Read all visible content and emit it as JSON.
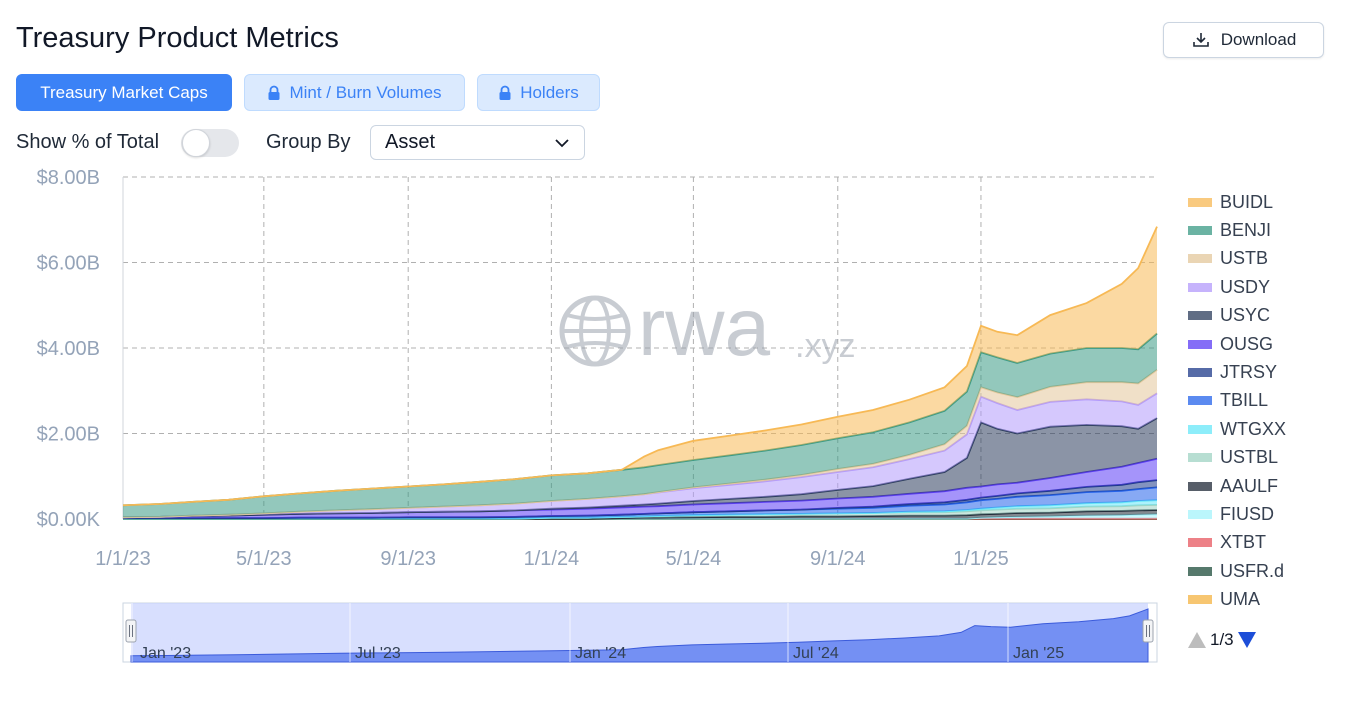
{
  "header": {
    "title": "Treasury Product Metrics",
    "download_label": "Download"
  },
  "tabs": [
    {
      "label": "Treasury Market Caps",
      "active": true,
      "locked": false
    },
    {
      "label": "Mint / Burn Volumes",
      "active": false,
      "locked": true
    },
    {
      "label": "Holders",
      "active": false,
      "locked": true
    }
  ],
  "controls": {
    "show_percent_label": "Show % of Total",
    "show_percent_on": false,
    "group_by_label": "Group By",
    "group_by_value": "Asset"
  },
  "watermark": {
    "main": "rwa",
    "suffix": ".xyz"
  },
  "legend_pager": "1/3",
  "navigator": {
    "labels": [
      "Jan '23",
      "Jul '23",
      "Jan '24",
      "Jul '24",
      "Jan '25"
    ]
  },
  "chart_data": {
    "type": "area",
    "stacked": true,
    "x_tick_labels": [
      "1/1/23",
      "5/1/23",
      "9/1/23",
      "1/1/24",
      "5/1/24",
      "9/1/24",
      "1/1/25"
    ],
    "y_tick_labels": [
      "$0.00K",
      "$2.00B",
      "$4.00B",
      "$6.00B",
      "$8.00B"
    ],
    "ylim": [
      0,
      8
    ],
    "y_unit": "B USD",
    "grid": true,
    "legend_position": "right",
    "x": [
      "2023-01-01",
      "2023-02-01",
      "2023-03-01",
      "2023-04-01",
      "2023-05-01",
      "2023-06-01",
      "2023-07-01",
      "2023-08-01",
      "2023-09-01",
      "2023-10-01",
      "2023-11-01",
      "2023-12-01",
      "2024-01-01",
      "2024-02-01",
      "2024-03-01",
      "2024-03-20",
      "2024-04-01",
      "2024-05-01",
      "2024-06-01",
      "2024-07-01",
      "2024-08-01",
      "2024-09-01",
      "2024-10-01",
      "2024-11-01",
      "2024-12-01",
      "2024-12-20",
      "2025-01-01",
      "2025-01-15",
      "2025-02-01",
      "2025-03-01",
      "2025-04-01",
      "2025-05-01",
      "2025-05-15",
      "2025-05-31"
    ],
    "series": [
      {
        "name": "UMA",
        "color": "#f5b342",
        "values": [
          0,
          0,
          0,
          0,
          0,
          0,
          0,
          0,
          0,
          0,
          0,
          0,
          0,
          0,
          0,
          0,
          0,
          0,
          0,
          0,
          0,
          0,
          0,
          0,
          0,
          0,
          0,
          0,
          0,
          0,
          0,
          0,
          0,
          0
        ]
      },
      {
        "name": "USFR.d",
        "color": "#1e4d3c",
        "values": [
          0,
          0,
          0,
          0,
          0,
          0,
          0,
          0,
          0,
          0,
          0,
          0,
          0,
          0,
          0,
          0,
          0,
          0,
          0,
          0,
          0,
          0,
          0,
          0,
          0,
          0,
          0,
          0,
          0,
          0,
          0,
          0,
          0,
          0
        ]
      },
      {
        "name": "XTBT",
        "color": "#e8575f",
        "values": [
          0.01,
          0.01,
          0.01,
          0.01,
          0.01,
          0.01,
          0.01,
          0.01,
          0.01,
          0.01,
          0.01,
          0.01,
          0.01,
          0.01,
          0.01,
          0.01,
          0.01,
          0.01,
          0.01,
          0.01,
          0.01,
          0.01,
          0.01,
          0.01,
          0.01,
          0.01,
          0.01,
          0.01,
          0.01,
          0.01,
          0.01,
          0.01,
          0.01,
          0.01
        ]
      },
      {
        "name": "FIUSD",
        "color": "#a5f3fc",
        "values": [
          0,
          0,
          0,
          0,
          0,
          0,
          0,
          0,
          0,
          0,
          0,
          0,
          0,
          0,
          0,
          0,
          0,
          0,
          0,
          0,
          0,
          0,
          0,
          0,
          0,
          0,
          0.02,
          0.03,
          0.04,
          0.05,
          0.07,
          0.08,
          0.09,
          0.1
        ]
      },
      {
        "name": "AAULF",
        "color": "#1f2937",
        "values": [
          0,
          0,
          0,
          0,
          0,
          0,
          0,
          0,
          0,
          0,
          0,
          0,
          0,
          0,
          0.01,
          0.02,
          0.02,
          0.03,
          0.04,
          0.04,
          0.05,
          0.05,
          0.06,
          0.07,
          0.07,
          0.08,
          0.08,
          0.08,
          0.09,
          0.09,
          0.1,
          0.1,
          0.1,
          0.1
        ]
      },
      {
        "name": "USTBL",
        "color": "#9fd4c4",
        "values": [
          0,
          0,
          0,
          0,
          0,
          0,
          0,
          0,
          0,
          0,
          0,
          0,
          0.02,
          0.02,
          0.03,
          0.03,
          0.04,
          0.05,
          0.05,
          0.06,
          0.06,
          0.07,
          0.07,
          0.08,
          0.08,
          0.09,
          0.09,
          0.1,
          0.1,
          0.1,
          0.11,
          0.11,
          0.12,
          0.12
        ]
      },
      {
        "name": "WTGXX",
        "color": "#67e8f9",
        "values": [
          0,
          0,
          0,
          0,
          0,
          0,
          0,
          0,
          0,
          0,
          0,
          0,
          0,
          0,
          0,
          0,
          0,
          0,
          0,
          0,
          0,
          0,
          0,
          0.01,
          0.02,
          0.03,
          0.04,
          0.05,
          0.06,
          0.07,
          0.08,
          0.09,
          0.1,
          0.11
        ]
      },
      {
        "name": "TBILL",
        "color": "#2563eb",
        "values": [
          0.01,
          0.01,
          0.01,
          0.01,
          0.01,
          0.02,
          0.02,
          0.02,
          0.03,
          0.03,
          0.03,
          0.04,
          0.04,
          0.05,
          0.05,
          0.06,
          0.06,
          0.07,
          0.08,
          0.09,
          0.1,
          0.11,
          0.12,
          0.14,
          0.16,
          0.18,
          0.2,
          0.2,
          0.22,
          0.24,
          0.26,
          0.27,
          0.28,
          0.3
        ]
      },
      {
        "name": "JTRSY",
        "color": "#1e3a8a",
        "values": [
          0,
          0,
          0,
          0,
          0,
          0,
          0,
          0,
          0,
          0,
          0,
          0,
          0,
          0,
          0,
          0,
          0,
          0,
          0,
          0,
          0,
          0.02,
          0.03,
          0.04,
          0.05,
          0.06,
          0.06,
          0.07,
          0.08,
          0.1,
          0.12,
          0.14,
          0.16,
          0.17
        ]
      },
      {
        "name": "OUSG",
        "color": "#5b3df5",
        "values": [
          0.02,
          0.03,
          0.05,
          0.06,
          0.08,
          0.09,
          0.1,
          0.11,
          0.12,
          0.13,
          0.14,
          0.15,
          0.15,
          0.16,
          0.17,
          0.17,
          0.17,
          0.18,
          0.19,
          0.2,
          0.21,
          0.22,
          0.23,
          0.24,
          0.26,
          0.28,
          0.26,
          0.27,
          0.25,
          0.3,
          0.35,
          0.42,
          0.45,
          0.5
        ]
      },
      {
        "name": "USYC",
        "color": "#2b3d5c",
        "values": [
          0,
          0,
          0,
          0,
          0,
          0,
          0,
          0,
          0,
          0,
          0,
          0,
          0.02,
          0.03,
          0.04,
          0.05,
          0.06,
          0.08,
          0.1,
          0.12,
          0.15,
          0.2,
          0.25,
          0.35,
          0.45,
          0.7,
          1.5,
          1.3,
          1.15,
          1.2,
          1.1,
          0.95,
          0.8,
          0.95
        ]
      },
      {
        "name": "USDY",
        "color": "#b39afc",
        "values": [
          0,
          0,
          0.01,
          0.02,
          0.03,
          0.05,
          0.07,
          0.09,
          0.1,
          0.12,
          0.14,
          0.16,
          0.18,
          0.2,
          0.22,
          0.24,
          0.26,
          0.3,
          0.33,
          0.36,
          0.4,
          0.42,
          0.44,
          0.46,
          0.5,
          0.55,
          0.6,
          0.6,
          0.55,
          0.58,
          0.6,
          0.58,
          0.56,
          0.58
        ]
      },
      {
        "name": "USTB",
        "color": "#e3c79b",
        "values": [
          0,
          0,
          0,
          0,
          0,
          0,
          0,
          0,
          0,
          0,
          0,
          0,
          0,
          0,
          0,
          0,
          0.01,
          0.02,
          0.03,
          0.04,
          0.05,
          0.07,
          0.08,
          0.1,
          0.15,
          0.2,
          0.22,
          0.25,
          0.3,
          0.35,
          0.4,
          0.45,
          0.5,
          0.55
        ]
      },
      {
        "name": "BENJI",
        "color": "#3a9a85",
        "values": [
          0.28,
          0.3,
          0.32,
          0.35,
          0.4,
          0.43,
          0.46,
          0.48,
          0.5,
          0.52,
          0.55,
          0.57,
          0.6,
          0.6,
          0.62,
          0.63,
          0.63,
          0.64,
          0.66,
          0.68,
          0.7,
          0.72,
          0.74,
          0.76,
          0.78,
          0.8,
          0.82,
          0.82,
          0.8,
          0.78,
          0.8,
          0.8,
          0.8,
          0.85
        ]
      },
      {
        "name": "BUIDL",
        "color": "#f7b955",
        "values": [
          0,
          0,
          0,
          0,
          0,
          0,
          0,
          0,
          0,
          0,
          0,
          0,
          0,
          0,
          0,
          0.25,
          0.35,
          0.45,
          0.46,
          0.47,
          0.48,
          0.5,
          0.52,
          0.53,
          0.55,
          0.6,
          0.62,
          0.6,
          0.65,
          0.9,
          1.05,
          1.5,
          1.9,
          2.5
        ]
      }
    ]
  }
}
